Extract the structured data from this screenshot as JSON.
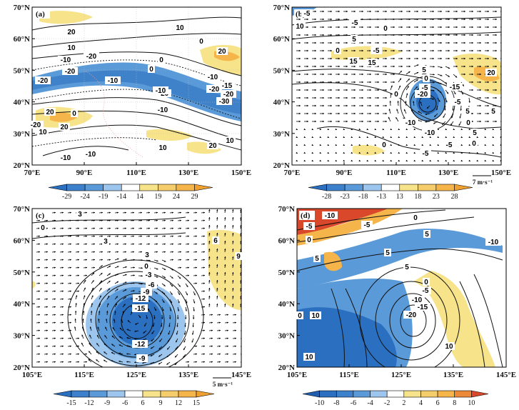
{
  "panels": [
    {
      "id": "a",
      "tag": "(a)",
      "x_ticks": [
        "70°E",
        "90°E",
        "110°E",
        "130°E",
        "150°E"
      ],
      "y_ticks": [
        "70°N",
        "60°N",
        "50°N",
        "40°N",
        "30°N",
        "20°N"
      ],
      "colorbar": {
        "labels": [
          "-29",
          "-24",
          "-19",
          "-14",
          "14",
          "19",
          "24",
          "29"
        ]
      },
      "contour_labels": [
        "20",
        "10",
        "10",
        "0",
        "-10",
        "-20",
        "-20",
        "-20",
        "-10",
        "0",
        "0",
        "-10",
        "-20",
        "-30",
        "-20",
        "-20",
        "-15",
        "-10",
        "20",
        "20",
        "10",
        "0",
        "-10",
        "-20",
        "10",
        "-10",
        "-10",
        "20",
        "10",
        "20"
      ],
      "vector_ref": ""
    },
    {
      "id": "b",
      "tag": "(b)",
      "x_ticks": [
        "70°E",
        "90°E",
        "110°E",
        "130°E",
        "150°E"
      ],
      "y_ticks": [
        "70°N",
        "60°N",
        "50°N",
        "40°N",
        "30°N",
        "20°N"
      ],
      "colorbar": {
        "labels": [
          "-28",
          "-23",
          "-18",
          "-13",
          "13",
          "18",
          "23",
          "28"
        ]
      },
      "contour_labels": [
        "-5",
        "10",
        "-5",
        "0",
        "5",
        "0",
        "-5",
        "15",
        "15",
        "5",
        "0",
        "-5",
        "-20",
        "-15",
        "20",
        "-5",
        "5",
        "0",
        "-10",
        "5",
        "0",
        "0",
        "-5",
        "-5",
        "5",
        "0",
        "-10"
      ],
      "vector_ref": "7 m·s⁻¹"
    },
    {
      "id": "c",
      "tag": "(c)",
      "x_ticks": [
        "105°E",
        "115°E",
        "125°E",
        "135°E",
        "145°E"
      ],
      "y_ticks": [
        "70°N",
        "60°N",
        "50°N",
        "40°N",
        "30°N",
        "20°N"
      ],
      "colorbar": {
        "labels": [
          "-15",
          "-12",
          "-9",
          "-6",
          "6",
          "9",
          "12",
          "15"
        ]
      },
      "contour_labels": [
        "3",
        "0",
        "3",
        "0",
        "-3",
        "3",
        "-6",
        "-9",
        "-12",
        "-15",
        "-12",
        "-9",
        "6",
        "9"
      ],
      "vector_ref": "5 m·s⁻¹"
    },
    {
      "id": "d",
      "tag": "(d)",
      "x_ticks": [
        "105°E",
        "115°E",
        "125°E",
        "135°E",
        "145°E"
      ],
      "y_ticks": [
        "70°N",
        "60°N",
        "50°N",
        "40°N",
        "30°N",
        "20°N"
      ],
      "colorbar": {
        "labels": [
          "-10",
          "-8",
          "-6",
          "-4",
          "-2",
          "2",
          "4",
          "6",
          "8",
          "10"
        ]
      },
      "contour_labels": [
        "-10",
        "-5",
        "0",
        "-5",
        "0",
        "5",
        "5",
        "5",
        "5",
        "0",
        "-5",
        "-10",
        "-15",
        "-20",
        "0",
        "10",
        "10",
        "10",
        "-10"
      ],
      "vector_ref": ""
    }
  ],
  "colors": {
    "blue_dark": "#2a6fc0",
    "blue_mid": "#5b9ad8",
    "blue_light": "#9cc6ee",
    "yellow_light": "#f7e38a",
    "orange": "#f5b54a",
    "red": "#d9482b",
    "contour": "#111111",
    "coast": "#e8a0a0"
  }
}
